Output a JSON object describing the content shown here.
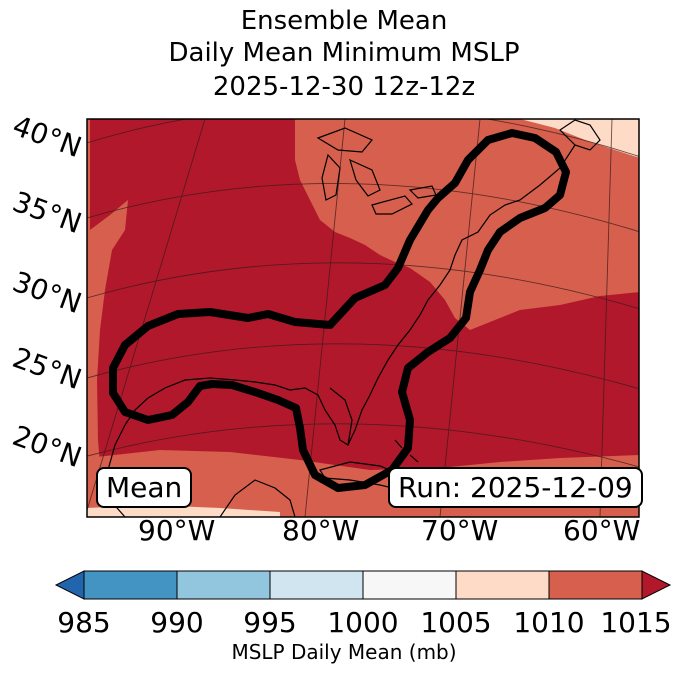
{
  "title": {
    "line1": "Ensemble Mean",
    "line2": "Daily Mean Minimum MSLP",
    "line3": "2025-12-30 12z-12z"
  },
  "map": {
    "lat_labels": [
      "40°N",
      "35°N",
      "30°N",
      "25°N",
      "20°N"
    ],
    "lon_labels": [
      "90°W",
      "80°W",
      "70°W",
      "60°W"
    ],
    "fill_colors": {
      "le985": "#2166ac",
      "985_990": "#4393c3",
      "990_995": "#92c5de",
      "995_1000": "#d1e5f0",
      "1000_1005": "#f7f7f7",
      "1005_1010": "#fddbc7",
      "1010_1015": "#d6604d",
      "ge1015": "#b2182b"
    },
    "contour_color": "#000000",
    "member_label": "Mean",
    "run_label": "Run: 2025-12-09"
  },
  "colorbar": {
    "ticks": [
      "985",
      "990",
      "995",
      "1000",
      "1005",
      "1010",
      "1015"
    ],
    "colors": [
      "#4393c3",
      "#92c5de",
      "#d1e5f0",
      "#f7f7f7",
      "#fddbc7",
      "#d6604d"
    ],
    "under_color": "#2166ac",
    "over_color": "#b2182b",
    "label": "MSLP Daily Mean (mb)"
  }
}
